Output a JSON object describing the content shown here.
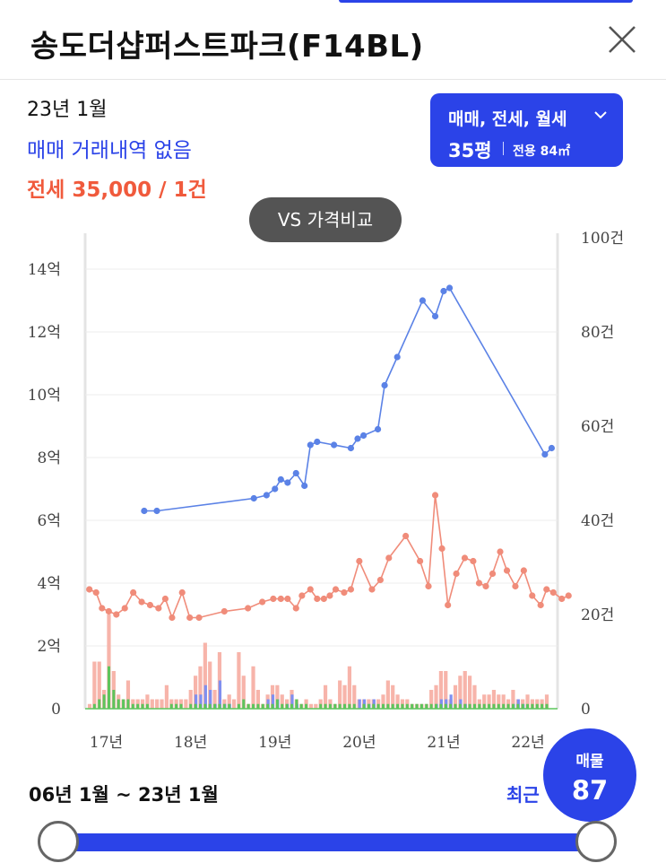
{
  "header": {
    "title": "송도더샵퍼스트파크(F14BL)"
  },
  "summary": {
    "date": "23년 1월",
    "sale_status": "매매 거래내역 없음",
    "jeonse_status": "전세 35,000 / 1건"
  },
  "filter": {
    "types_label": "매매, 전세, 월세",
    "size_label": "35평",
    "area_label": "전용 84㎡"
  },
  "compare_button": "VS 가격비교",
  "chart_data": {
    "type": "line",
    "x_axis": {
      "ticks": [
        "17년",
        "18년",
        "19년",
        "20년",
        "21년",
        "22년"
      ],
      "range": [
        2016.75,
        2022.35
      ]
    },
    "y_left": {
      "ticks": [
        "0",
        "2억",
        "4억",
        "6억",
        "8억",
        "10억",
        "12억",
        "14억"
      ],
      "range": [
        0,
        14
      ]
    },
    "y_right": {
      "ticks": [
        "0",
        "20건",
        "40건",
        "60건",
        "80건",
        "100건"
      ],
      "range": [
        0,
        100
      ]
    },
    "colors": {
      "sale": "#5b82e6",
      "jeonse": "#f08c7a",
      "vol_sale": "#7f8ff0",
      "vol_jeonse": "#f7b4aa",
      "vol_green": "#5cc55c"
    },
    "series": [
      {
        "id": "sale",
        "x": [
          2017.45,
          2017.6,
          2018.75,
          2018.9,
          2019.0,
          2019.07,
          2019.15,
          2019.25,
          2019.35,
          2019.42,
          2019.5,
          2019.7,
          2019.9,
          2019.98,
          2020.05,
          2020.22,
          2020.3,
          2020.45,
          2020.75,
          2020.9,
          2021.0,
          2021.07,
          2022.2,
          2022.28
        ],
        "y": [
          6.3,
          6.3,
          6.7,
          6.8,
          7.0,
          7.3,
          7.2,
          7.5,
          7.1,
          8.4,
          8.5,
          8.4,
          8.3,
          8.6,
          8.7,
          8.9,
          10.3,
          11.2,
          13.0,
          12.5,
          13.3,
          13.4,
          8.1,
          8.3
        ]
      },
      {
        "id": "jeonse",
        "x": [
          2016.8,
          2016.88,
          2016.95,
          2017.03,
          2017.12,
          2017.22,
          2017.32,
          2017.42,
          2017.52,
          2017.62,
          2017.7,
          2017.78,
          2017.9,
          2017.99,
          2018.1,
          2018.4,
          2018.68,
          2018.85,
          2018.98,
          2019.07,
          2019.15,
          2019.25,
          2019.32,
          2019.42,
          2019.5,
          2019.58,
          2019.65,
          2019.72,
          2019.82,
          2019.9,
          2020.0,
          2020.15,
          2020.25,
          2020.35,
          2020.55,
          2020.72,
          2020.82,
          2020.9,
          2020.98,
          2021.05,
          2021.15,
          2021.25,
          2021.35,
          2021.42,
          2021.5,
          2021.58,
          2021.67,
          2021.75,
          2021.85,
          2021.95,
          2022.05,
          2022.15,
          2022.22,
          2022.3,
          2022.4,
          2022.48
        ],
        "y": [
          3.8,
          3.7,
          3.2,
          3.1,
          3.0,
          3.2,
          3.7,
          3.4,
          3.3,
          3.2,
          3.5,
          2.9,
          3.7,
          2.9,
          2.9,
          3.1,
          3.2,
          3.4,
          3.5,
          3.5,
          3.5,
          3.2,
          3.6,
          3.8,
          3.5,
          3.5,
          3.6,
          3.8,
          3.7,
          3.8,
          4.7,
          3.8,
          4.1,
          4.8,
          5.5,
          4.7,
          3.9,
          6.8,
          5.1,
          3.3,
          4.3,
          4.8,
          4.7,
          4.0,
          3.9,
          4.3,
          5.0,
          4.4,
          3.9,
          4.4,
          3.6,
          3.3,
          3.8,
          3.7,
          3.5,
          3.6
        ]
      }
    ],
    "volume_jeonse": [
      1,
      10,
      10,
      4,
      20,
      8,
      3,
      2,
      6,
      2,
      2,
      2,
      3,
      2,
      2,
      2,
      5,
      2,
      2,
      2,
      2,
      4,
      7,
      9,
      14,
      10,
      4,
      12,
      2,
      3,
      2,
      12,
      7,
      1,
      9,
      4,
      1,
      3,
      5,
      5,
      3,
      2,
      4,
      2,
      1,
      2,
      1,
      1,
      2,
      5,
      2,
      1,
      6,
      5,
      9,
      5,
      2,
      2,
      2,
      2,
      2,
      3,
      6,
      5,
      3,
      2,
      2,
      1,
      1,
      1,
      1,
      4,
      5,
      8,
      8,
      2,
      5,
      7,
      8,
      7,
      5,
      2,
      3,
      3,
      4,
      3,
      3,
      2,
      4,
      2,
      2,
      3,
      2,
      2,
      2,
      3
    ],
    "volume_sale": [
      0,
      0,
      0,
      0,
      0,
      0,
      0,
      0,
      0,
      0,
      0,
      0,
      0,
      0,
      0,
      0,
      0,
      0,
      0,
      0,
      0,
      0,
      3,
      3,
      5,
      4,
      1,
      6,
      1,
      1,
      0,
      0,
      0,
      0,
      0,
      0,
      0,
      2,
      3,
      2,
      0,
      1,
      3,
      1,
      0,
      0,
      0,
      0,
      0,
      0,
      0,
      0,
      0,
      0,
      0,
      0,
      2,
      2,
      1,
      2,
      0,
      0,
      0,
      0,
      0,
      0,
      0,
      0,
      0,
      0,
      0,
      0,
      1,
      2,
      2,
      3,
      0,
      2,
      1,
      0,
      0,
      0,
      0,
      0,
      0,
      0,
      0,
      0,
      1,
      2,
      1,
      0,
      0,
      0,
      0,
      0
    ],
    "volume_green": [
      0,
      1,
      2,
      3,
      9,
      4,
      2,
      2,
      2,
      1,
      1,
      1,
      1,
      0,
      0,
      0,
      0,
      1,
      1,
      1,
      0,
      1,
      1,
      1,
      1,
      1,
      1,
      1,
      1,
      1,
      0,
      1,
      2,
      1,
      1,
      1,
      1,
      1,
      1,
      2,
      1,
      1,
      1,
      2,
      1,
      1,
      0,
      0,
      1,
      1,
      1,
      1,
      1,
      1,
      1,
      1,
      0,
      1,
      1,
      1,
      1,
      1,
      1,
      1,
      1,
      1,
      1,
      1,
      1,
      1,
      1,
      1,
      1,
      1,
      1,
      1,
      1,
      1,
      1,
      1,
      1,
      1,
      1,
      1,
      1,
      1,
      1,
      1,
      1,
      1,
      1,
      1,
      1,
      1,
      1,
      1
    ]
  },
  "footer": {
    "period": "06년 1월 ~ 23년 1월",
    "recent": "최근",
    "listing_label": "매물",
    "listing_count": "87"
  }
}
